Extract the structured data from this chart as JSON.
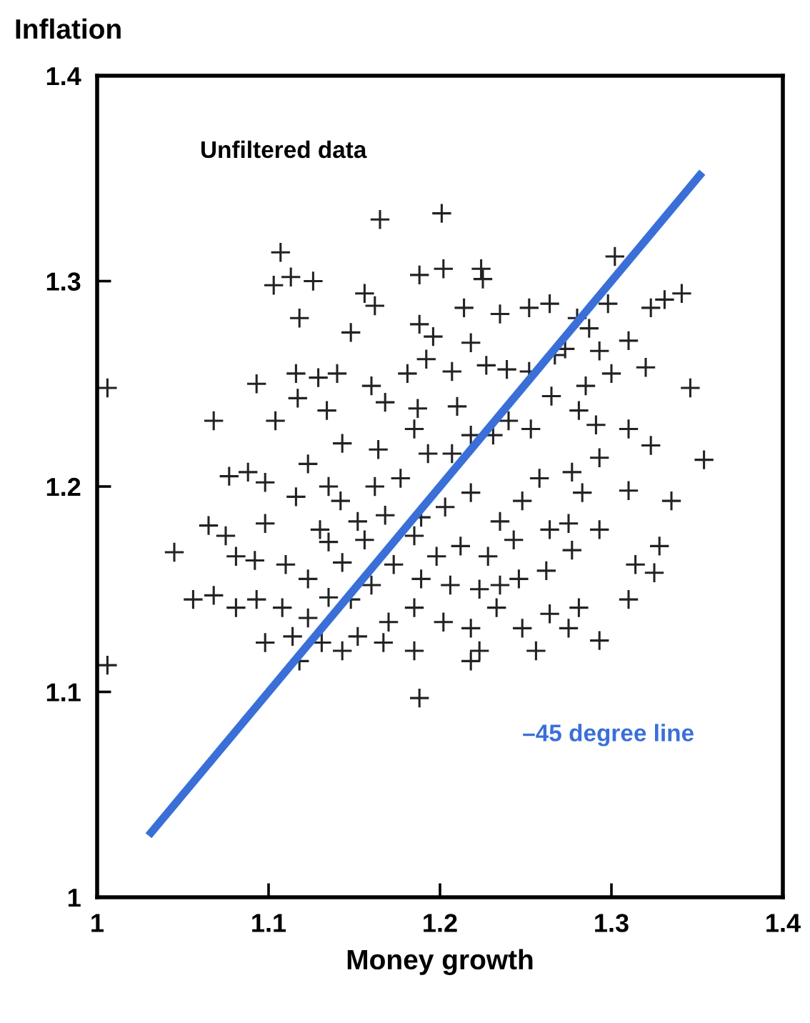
{
  "chart_data": {
    "type": "scatter",
    "xlabel": "Money growth",
    "ylabel": "Inflation",
    "annotations": [
      "Unfiltered data"
    ],
    "xlim": [
      1,
      1.4
    ],
    "ylim": [
      1,
      1.4
    ],
    "xticks": [
      1,
      1.1,
      1.2,
      1.3,
      1.4
    ],
    "yticks": [
      1,
      1.1,
      1.2,
      1.3,
      1.4
    ],
    "grid": false,
    "legend": false,
    "series": [
      {
        "marker": "cross",
        "color": "#222222",
        "x": [
          1.107,
          1.113,
          1.103,
          1.118,
          1.126,
          1.148,
          1.156,
          1.162,
          1.165,
          1.201,
          1.188,
          1.202,
          1.224,
          1.225,
          1.188,
          1.196,
          1.214,
          1.235,
          1.252,
          1.264,
          1.273,
          1.302,
          1.298,
          1.28,
          1.287,
          1.31,
          1.323,
          1.331,
          1.341,
          1.346,
          1.32,
          1.3,
          1.293,
          1.265,
          1.267,
          1.239,
          1.218,
          1.227,
          1.207,
          1.192,
          1.181,
          1.187,
          1.16,
          1.168,
          1.14,
          1.129,
          1.116,
          1.093,
          1.104,
          1.117,
          1.134,
          1.068,
          1.006,
          1.006,
          1.077,
          1.088,
          1.098,
          1.116,
          1.123,
          1.142,
          1.13,
          1.098,
          1.075,
          1.065,
          1.045,
          1.056,
          1.068,
          1.081,
          1.092,
          1.11,
          1.123,
          1.143,
          1.156,
          1.162,
          1.177,
          1.164,
          1.193,
          1.207,
          1.218,
          1.231,
          1.24,
          1.253,
          1.281,
          1.291,
          1.31,
          1.323,
          1.354,
          1.293,
          1.277,
          1.258,
          1.248,
          1.235,
          1.218,
          1.203,
          1.189,
          1.185,
          1.198,
          1.212,
          1.228,
          1.243,
          1.264,
          1.275,
          1.283,
          1.293,
          1.328,
          1.325,
          1.314,
          1.277,
          1.262,
          1.246,
          1.223,
          1.206,
          1.189,
          1.173,
          1.16,
          1.148,
          1.135,
          1.123,
          1.108,
          1.093,
          1.081,
          1.114,
          1.131,
          1.152,
          1.17,
          1.185,
          1.202,
          1.218,
          1.233,
          1.248,
          1.264,
          1.275,
          1.281,
          1.293,
          1.256,
          1.223,
          1.218,
          1.185,
          1.167,
          1.143,
          1.118,
          1.098,
          1.188,
          1.235,
          1.168,
          1.152,
          1.135,
          1.185,
          1.143,
          1.21,
          1.252,
          1.285,
          1.31,
          1.335,
          1.31,
          1.135
        ],
        "values": [
          1.314,
          1.302,
          1.298,
          1.282,
          1.3,
          1.275,
          1.294,
          1.288,
          1.33,
          1.333,
          1.303,
          1.306,
          1.306,
          1.301,
          1.279,
          1.273,
          1.287,
          1.284,
          1.287,
          1.289,
          1.267,
          1.312,
          1.289,
          1.282,
          1.277,
          1.271,
          1.287,
          1.291,
          1.294,
          1.248,
          1.258,
          1.255,
          1.266,
          1.244,
          1.264,
          1.257,
          1.27,
          1.259,
          1.256,
          1.262,
          1.255,
          1.238,
          1.249,
          1.241,
          1.255,
          1.253,
          1.255,
          1.25,
          1.232,
          1.243,
          1.237,
          1.232,
          1.248,
          1.113,
          1.205,
          1.207,
          1.202,
          1.195,
          1.211,
          1.193,
          1.179,
          1.182,
          1.176,
          1.181,
          1.168,
          1.145,
          1.147,
          1.166,
          1.164,
          1.162,
          1.155,
          1.163,
          1.174,
          1.2,
          1.204,
          1.218,
          1.216,
          1.216,
          1.225,
          1.225,
          1.232,
          1.228,
          1.237,
          1.23,
          1.228,
          1.22,
          1.213,
          1.214,
          1.207,
          1.204,
          1.193,
          1.183,
          1.197,
          1.19,
          1.185,
          1.176,
          1.166,
          1.171,
          1.166,
          1.174,
          1.179,
          1.182,
          1.197,
          1.179,
          1.171,
          1.158,
          1.162,
          1.169,
          1.159,
          1.155,
          1.15,
          1.152,
          1.155,
          1.162,
          1.152,
          1.145,
          1.146,
          1.136,
          1.141,
          1.145,
          1.141,
          1.127,
          1.124,
          1.127,
          1.134,
          1.141,
          1.134,
          1.131,
          1.141,
          1.131,
          1.138,
          1.131,
          1.141,
          1.125,
          1.12,
          1.12,
          1.115,
          1.12,
          1.124,
          1.12,
          1.115,
          1.124,
          1.097,
          1.152,
          1.186,
          1.183,
          1.173,
          1.228,
          1.221,
          1.239,
          1.256,
          1.249,
          1.198,
          1.193,
          1.145,
          1.2
        ]
      },
      {
        "type": "line",
        "name": "–45 degree line",
        "color": "#3a6fd8",
        "x": [
          1.03,
          1.353
        ],
        "values": [
          1.03,
          1.353
        ]
      }
    ]
  }
}
